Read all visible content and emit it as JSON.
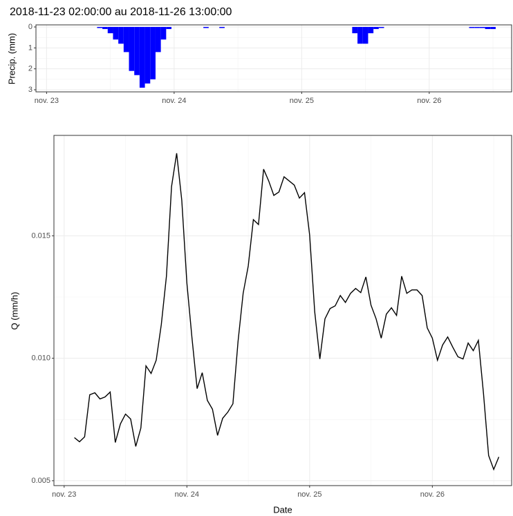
{
  "chart_data": [
    {
      "type": "bar",
      "title": "2018-11-23 02:00:00 au 2018-11-26 13:00:00",
      "y_label": "Precip. (mm)",
      "color": "#0000ff",
      "x": [
        "2018-11-23 10:00",
        "2018-11-23 11:00",
        "2018-11-23 12:00",
        "2018-11-23 13:00",
        "2018-11-23 14:00",
        "2018-11-23 15:00",
        "2018-11-23 16:00",
        "2018-11-23 17:00",
        "2018-11-23 18:00",
        "2018-11-23 19:00",
        "2018-11-23 20:00",
        "2018-11-23 21:00",
        "2018-11-23 22:00",
        "2018-11-23 23:00",
        "2018-11-24 06:00",
        "2018-11-24 09:00",
        "2018-11-25 10:00",
        "2018-11-25 11:00",
        "2018-11-25 12:00",
        "2018-11-25 13:00",
        "2018-11-25 14:00",
        "2018-11-25 15:00",
        "2018-11-26 08:00",
        "2018-11-26 09:00",
        "2018-11-26 10:00",
        "2018-11-26 11:00",
        "2018-11-26 12:00"
      ],
      "values": [
        0.05,
        0.1,
        0.3,
        0.6,
        0.8,
        1.2,
        2.1,
        2.3,
        2.9,
        2.7,
        2.5,
        1.2,
        0.6,
        0.1,
        0.05,
        0.05,
        0.3,
        0.8,
        0.8,
        0.3,
        0.1,
        0.05,
        0.05,
        0.05,
        0.05,
        0.1,
        0.1
      ],
      "xlim": [
        "2018-11-22 22:00",
        "2018-11-26 15:30"
      ],
      "xticks": [
        {
          "value": "2018-11-23 00:00",
          "label": "nov. 23"
        },
        {
          "value": "2018-11-24 00:00",
          "label": "nov. 24"
        },
        {
          "value": "2018-11-25 00:00",
          "label": "nov. 25"
        },
        {
          "value": "2018-11-26 00:00",
          "label": "nov. 26"
        }
      ],
      "ylim": [
        -0.1,
        3.1
      ],
      "y_reversed": true,
      "yticks": [
        0,
        1,
        2,
        3
      ],
      "grid": true
    },
    {
      "type": "line",
      "x_label": "Date",
      "y_label": "Q (mm/h)",
      "color": "#000000",
      "x": [
        "2018-11-23 02:00",
        "2018-11-23 03:00",
        "2018-11-23 04:00",
        "2018-11-23 05:00",
        "2018-11-23 06:00",
        "2018-11-23 07:00",
        "2018-11-23 08:00",
        "2018-11-23 09:00",
        "2018-11-23 10:00",
        "2018-11-23 11:00",
        "2018-11-23 12:00",
        "2018-11-23 13:00",
        "2018-11-23 14:00",
        "2018-11-23 15:00",
        "2018-11-23 16:00",
        "2018-11-23 17:00",
        "2018-11-23 18:00",
        "2018-11-23 19:00",
        "2018-11-23 20:00",
        "2018-11-23 21:00",
        "2018-11-23 22:00",
        "2018-11-23 23:00",
        "2018-11-24 00:00",
        "2018-11-24 01:00",
        "2018-11-24 02:00",
        "2018-11-24 03:00",
        "2018-11-24 04:00",
        "2018-11-24 05:00",
        "2018-11-24 06:00",
        "2018-11-24 07:00",
        "2018-11-24 08:00",
        "2018-11-24 09:00",
        "2018-11-24 10:00",
        "2018-11-24 11:00",
        "2018-11-24 12:00",
        "2018-11-24 13:00",
        "2018-11-24 14:00",
        "2018-11-24 15:00",
        "2018-11-24 16:00",
        "2018-11-24 17:00",
        "2018-11-24 18:00",
        "2018-11-24 19:00",
        "2018-11-24 20:00",
        "2018-11-24 21:00",
        "2018-11-24 22:00",
        "2018-11-24 23:00",
        "2018-11-25 00:00",
        "2018-11-25 01:00",
        "2018-11-25 02:00",
        "2018-11-25 03:00",
        "2018-11-25 04:00",
        "2018-11-25 05:00",
        "2018-11-25 06:00",
        "2018-11-25 07:00",
        "2018-11-25 08:00",
        "2018-11-25 09:00",
        "2018-11-25 10:00",
        "2018-11-25 11:00",
        "2018-11-25 12:00",
        "2018-11-25 13:00",
        "2018-11-25 14:00",
        "2018-11-25 15:00",
        "2018-11-25 16:00",
        "2018-11-25 17:00",
        "2018-11-25 18:00",
        "2018-11-25 19:00",
        "2018-11-25 20:00",
        "2018-11-25 21:00",
        "2018-11-25 22:00",
        "2018-11-25 23:00",
        "2018-11-26 00:00",
        "2018-11-26 01:00",
        "2018-11-26 02:00",
        "2018-11-26 03:00",
        "2018-11-26 04:00",
        "2018-11-26 05:00",
        "2018-11-26 06:00",
        "2018-11-26 07:00",
        "2018-11-26 08:00",
        "2018-11-26 09:00",
        "2018-11-26 10:00",
        "2018-11-26 11:00",
        "2018-11-26 12:00",
        "2018-11-26 13:00"
      ],
      "values": [
        0.00676,
        0.00659,
        0.00679,
        0.00851,
        0.00859,
        0.00834,
        0.00842,
        0.00862,
        0.00656,
        0.00732,
        0.00772,
        0.00752,
        0.0064,
        0.00715,
        0.00969,
        0.00938,
        0.00992,
        0.01138,
        0.01335,
        0.01701,
        0.01837,
        0.01645,
        0.01307,
        0.01082,
        0.00876,
        0.00941,
        0.00828,
        0.00792,
        0.00685,
        0.00755,
        0.0078,
        0.00814,
        0.01068,
        0.01265,
        0.01377,
        0.01566,
        0.01546,
        0.01772,
        0.01724,
        0.01665,
        0.01679,
        0.01741,
        0.01724,
        0.01707,
        0.01654,
        0.01676,
        0.01504,
        0.01189,
        0.00997,
        0.01161,
        0.01203,
        0.01214,
        0.01256,
        0.01228,
        0.01265,
        0.01285,
        0.01268,
        0.01332,
        0.01217,
        0.01161,
        0.01082,
        0.0118,
        0.01206,
        0.01175,
        0.01335,
        0.01265,
        0.01279,
        0.01279,
        0.01256,
        0.01124,
        0.01082,
        0.00992,
        0.01054,
        0.01087,
        0.01045,
        0.01006,
        0.00997,
        0.01062,
        0.01031,
        0.01073,
        0.00856,
        0.00603,
        0.00546,
        0.00597
      ],
      "xlim": [
        "2018-11-22 22:00",
        "2018-11-26 15:30"
      ],
      "xticks": [
        {
          "value": "2018-11-23 00:00",
          "label": "nov. 23"
        },
        {
          "value": "2018-11-24 00:00",
          "label": "nov. 24"
        },
        {
          "value": "2018-11-25 00:00",
          "label": "nov. 25"
        },
        {
          "value": "2018-11-26 00:00",
          "label": "nov. 26"
        }
      ],
      "ylim": [
        0.0048,
        0.0191
      ],
      "yticks": [
        0.005,
        {
          "value": 0.01,
          "label": "0.010"
        },
        0.015
      ],
      "grid": true
    }
  ]
}
